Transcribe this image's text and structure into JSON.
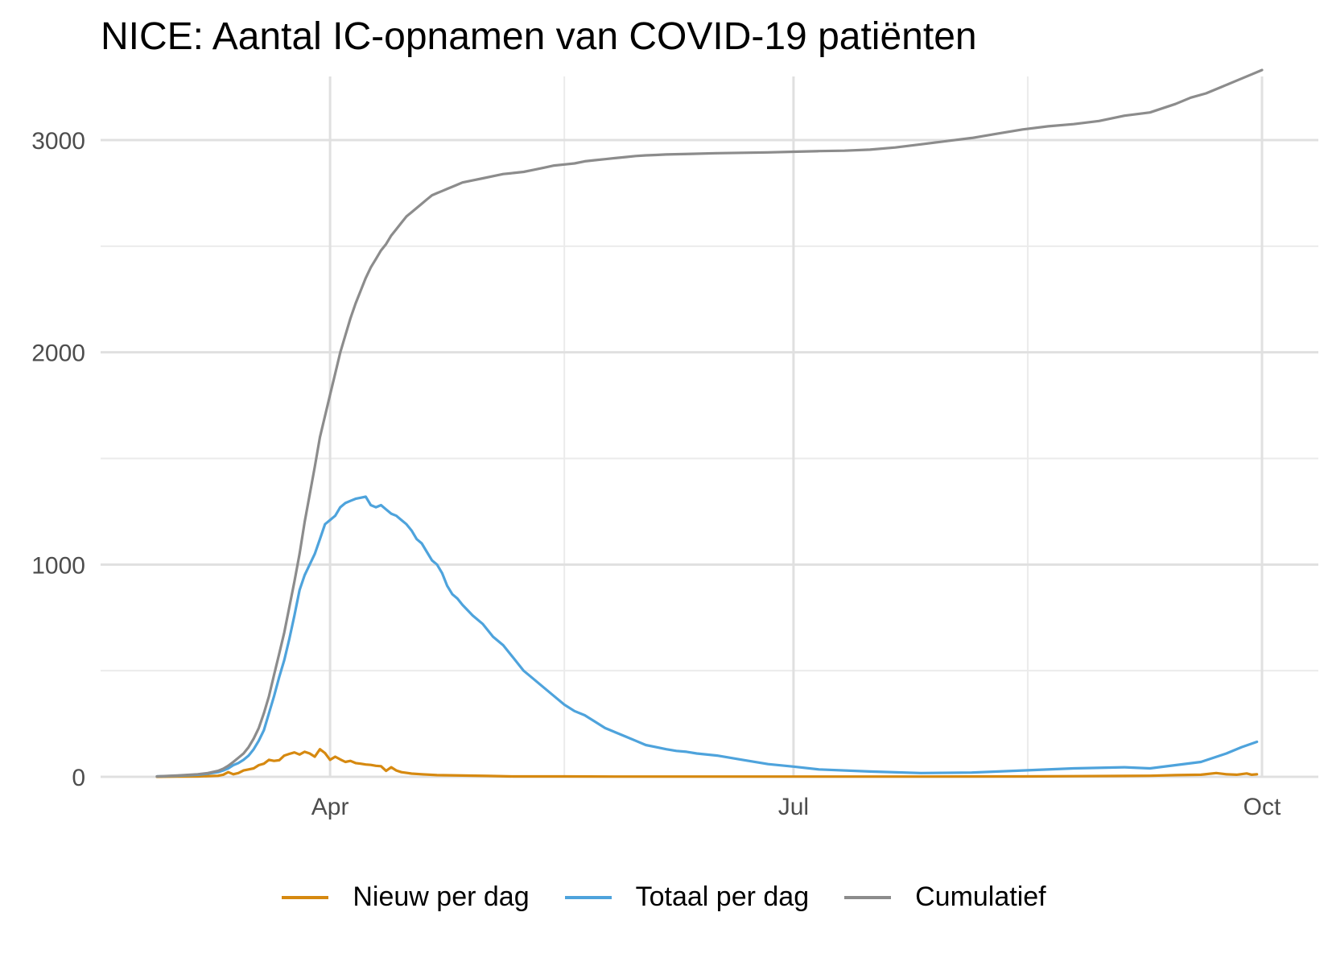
{
  "chart_data": {
    "type": "line",
    "title": "NICE: Aantal IC-opnamen van COVID-19 patiënten",
    "xlabel": "",
    "ylabel": "",
    "x_start_date": "2020-02-27",
    "x_range_days": [
      -7,
      217
    ],
    "ylim": [
      0,
      3300
    ],
    "y_ticks": [
      0,
      1000,
      2000,
      3000
    ],
    "y_minor_ticks": [
      500,
      1500,
      2500
    ],
    "y_tick_labels": [
      "0",
      "1000",
      "2000",
      "3000"
    ],
    "x_ticks_days": [
      34,
      125,
      217
    ],
    "x_tick_labels": [
      "Apr",
      "Jul",
      "Oct"
    ],
    "x_minor_ticks_days": [
      80,
      171
    ],
    "grid": true,
    "legend_position": "bottom",
    "series": [
      {
        "name": "Nieuw per dag",
        "color": "#D68910",
        "x": [
          0,
          4,
          8,
          12,
          13,
          14,
          15,
          16,
          17,
          18,
          19,
          20,
          21,
          22,
          23,
          24,
          25,
          26,
          27,
          28,
          29,
          30,
          31,
          32,
          33,
          34,
          35,
          36,
          37,
          38,
          39,
          40,
          41,
          42,
          43,
          44,
          45,
          46,
          47,
          48,
          50,
          52,
          55,
          60,
          65,
          70,
          80,
          90,
          100,
          125,
          150,
          170,
          180,
          195,
          200,
          205,
          208,
          210,
          212,
          214,
          215,
          216
        ],
        "values": [
          0,
          1,
          2,
          5,
          10,
          22,
          12,
          18,
          30,
          35,
          40,
          55,
          62,
          80,
          75,
          78,
          100,
          108,
          115,
          105,
          118,
          110,
          95,
          130,
          112,
          80,
          95,
          82,
          70,
          75,
          65,
          62,
          58,
          56,
          52,
          50,
          28,
          45,
          30,
          22,
          15,
          12,
          8,
          6,
          4,
          2,
          2,
          1,
          1,
          1,
          1,
          2,
          3,
          5,
          8,
          10,
          18,
          12,
          10,
          16,
          10,
          12
        ]
      },
      {
        "name": "Totaal per dag",
        "color": "#4EA3DC",
        "x": [
          0,
          4,
          8,
          10,
          12,
          13,
          14,
          15,
          16,
          17,
          18,
          19,
          20,
          21,
          22,
          23,
          24,
          25,
          26,
          27,
          28,
          29,
          30,
          31,
          32,
          33,
          34,
          35,
          36,
          37,
          38,
          39,
          40,
          41,
          42,
          43,
          44,
          45,
          46,
          47,
          48,
          49,
          50,
          51,
          52,
          53,
          54,
          55,
          56,
          57,
          58,
          59,
          60,
          62,
          64,
          66,
          68,
          70,
          72,
          74,
          76,
          78,
          80,
          82,
          84,
          86,
          88,
          90,
          92,
          94,
          96,
          98,
          100,
          102,
          104,
          106,
          110,
          115,
          120,
          125,
          130,
          140,
          150,
          160,
          170,
          180,
          190,
          195,
          200,
          205,
          210,
          213,
          216
        ],
        "values": [
          2,
          5,
          10,
          15,
          22,
          30,
          40,
          55,
          65,
          80,
          100,
          130,
          170,
          220,
          300,
          380,
          470,
          550,
          650,
          760,
          880,
          950,
          1000,
          1050,
          1120,
          1190,
          1210,
          1230,
          1270,
          1290,
          1300,
          1310,
          1315,
          1320,
          1280,
          1270,
          1280,
          1260,
          1240,
          1230,
          1210,
          1190,
          1160,
          1120,
          1100,
          1060,
          1020,
          1000,
          960,
          900,
          860,
          840,
          810,
          760,
          720,
          660,
          620,
          560,
          500,
          460,
          420,
          380,
          340,
          310,
          290,
          260,
          230,
          210,
          190,
          170,
          150,
          140,
          130,
          122,
          118,
          110,
          100,
          80,
          60,
          48,
          35,
          25,
          18,
          20,
          30,
          40,
          45,
          40,
          55,
          70,
          110,
          140,
          165
        ]
      },
      {
        "name": "Cumulatief",
        "color": "#8C8C8C",
        "x": [
          0,
          4,
          8,
          10,
          12,
          13,
          14,
          15,
          16,
          17,
          18,
          19,
          20,
          21,
          22,
          23,
          24,
          25,
          26,
          27,
          28,
          29,
          30,
          31,
          32,
          33,
          34,
          35,
          36,
          37,
          38,
          39,
          40,
          41,
          42,
          43,
          44,
          45,
          46,
          47,
          48,
          49,
          50,
          51,
          52,
          53,
          54,
          55,
          56,
          57,
          58,
          59,
          60,
          62,
          64,
          66,
          68,
          70,
          72,
          74,
          76,
          78,
          80,
          82,
          84,
          86,
          88,
          90,
          92,
          94,
          96,
          98,
          100,
          105,
          110,
          115,
          120,
          125,
          130,
          135,
          140,
          145,
          150,
          155,
          160,
          165,
          170,
          175,
          180,
          185,
          190,
          195,
          200,
          203,
          206,
          209,
          212,
          215,
          217
        ],
        "values": [
          2,
          6,
          12,
          18,
          28,
          38,
          52,
          70,
          90,
          110,
          140,
          180,
          230,
          300,
          380,
          480,
          580,
          680,
          800,
          920,
          1050,
          1200,
          1330,
          1460,
          1600,
          1700,
          1800,
          1900,
          2000,
          2080,
          2160,
          2230,
          2290,
          2350,
          2400,
          2440,
          2480,
          2510,
          2550,
          2580,
          2610,
          2640,
          2660,
          2680,
          2700,
          2720,
          2740,
          2750,
          2760,
          2770,
          2780,
          2790,
          2800,
          2810,
          2820,
          2830,
          2840,
          2845,
          2850,
          2860,
          2870,
          2880,
          2885,
          2890,
          2900,
          2905,
          2910,
          2915,
          2920,
          2925,
          2928,
          2930,
          2932,
          2935,
          2938,
          2940,
          2942,
          2945,
          2948,
          2950,
          2955,
          2965,
          2980,
          2995,
          3010,
          3030,
          3050,
          3065,
          3075,
          3090,
          3115,
          3130,
          3170,
          3200,
          3220,
          3250,
          3280,
          3310,
          3330
        ]
      }
    ]
  },
  "legend": {
    "items": [
      {
        "label": "Nieuw per dag",
        "color": "#D68910"
      },
      {
        "label": "Totaal per dag",
        "color": "#4EA3DC"
      },
      {
        "label": "Cumulatief",
        "color": "#8C8C8C"
      }
    ]
  }
}
